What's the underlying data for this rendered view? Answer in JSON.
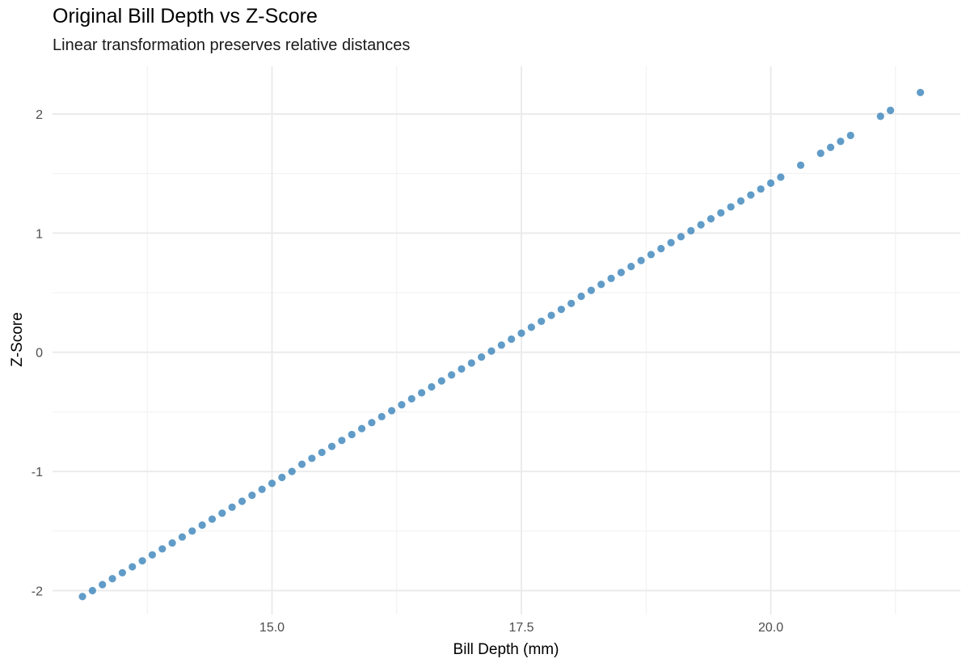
{
  "chart_data": {
    "type": "scatter",
    "title": "Original Bill Depth vs Z-Score",
    "subtitle": "Linear transformation preserves relative distances",
    "xlabel": "Bill Depth (mm)",
    "ylabel": "Z-Score",
    "xlim": [
      12.8,
      21.9
    ],
    "ylim": [
      -2.2,
      2.4
    ],
    "x_ticks": [
      15.0,
      17.5,
      20.0
    ],
    "x_tick_labels": [
      "15.0",
      "17.5",
      "20.0"
    ],
    "y_ticks": [
      -2,
      -1,
      0,
      1,
      2
    ],
    "y_tick_labels": [
      "-2",
      "-1",
      "0",
      "1",
      "2"
    ],
    "grid": true,
    "point_color": "#2c7bb6",
    "point_opacity": 0.75,
    "x": [
      13.1,
      13.2,
      13.3,
      13.4,
      13.5,
      13.6,
      13.7,
      13.8,
      13.9,
      14.0,
      14.1,
      14.2,
      14.3,
      14.4,
      14.5,
      14.6,
      14.7,
      14.8,
      14.9,
      15.0,
      15.1,
      15.2,
      15.3,
      15.4,
      15.5,
      15.6,
      15.7,
      15.8,
      15.9,
      16.0,
      16.1,
      16.2,
      16.3,
      16.4,
      16.5,
      16.6,
      16.7,
      16.8,
      16.9,
      17.0,
      17.1,
      17.2,
      17.3,
      17.4,
      17.5,
      17.6,
      17.7,
      17.8,
      17.9,
      18.0,
      18.1,
      18.2,
      18.3,
      18.4,
      18.5,
      18.6,
      18.7,
      18.8,
      18.9,
      19.0,
      19.1,
      19.2,
      19.3,
      19.4,
      19.5,
      19.6,
      19.7,
      19.8,
      19.9,
      20.0,
      20.1,
      20.3,
      20.5,
      20.6,
      20.7,
      20.8,
      21.1,
      21.2,
      21.5
    ],
    "y": [
      -2.05,
      -2.0,
      -1.95,
      -1.9,
      -1.85,
      -1.8,
      -1.75,
      -1.7,
      -1.65,
      -1.6,
      -1.55,
      -1.5,
      -1.45,
      -1.4,
      -1.35,
      -1.3,
      -1.25,
      -1.2,
      -1.15,
      -1.1,
      -1.05,
      -1.0,
      -0.94,
      -0.89,
      -0.84,
      -0.79,
      -0.74,
      -0.69,
      -0.64,
      -0.59,
      -0.54,
      -0.49,
      -0.44,
      -0.39,
      -0.34,
      -0.29,
      -0.24,
      -0.19,
      -0.14,
      -0.09,
      -0.04,
      0.01,
      0.06,
      0.11,
      0.16,
      0.21,
      0.26,
      0.31,
      0.36,
      0.41,
      0.47,
      0.52,
      0.57,
      0.62,
      0.67,
      0.72,
      0.77,
      0.82,
      0.87,
      0.92,
      0.97,
      1.02,
      1.07,
      1.12,
      1.17,
      1.22,
      1.27,
      1.32,
      1.37,
      1.42,
      1.47,
      1.57,
      1.67,
      1.72,
      1.77,
      1.82,
      1.98,
      2.03,
      2.18
    ]
  }
}
